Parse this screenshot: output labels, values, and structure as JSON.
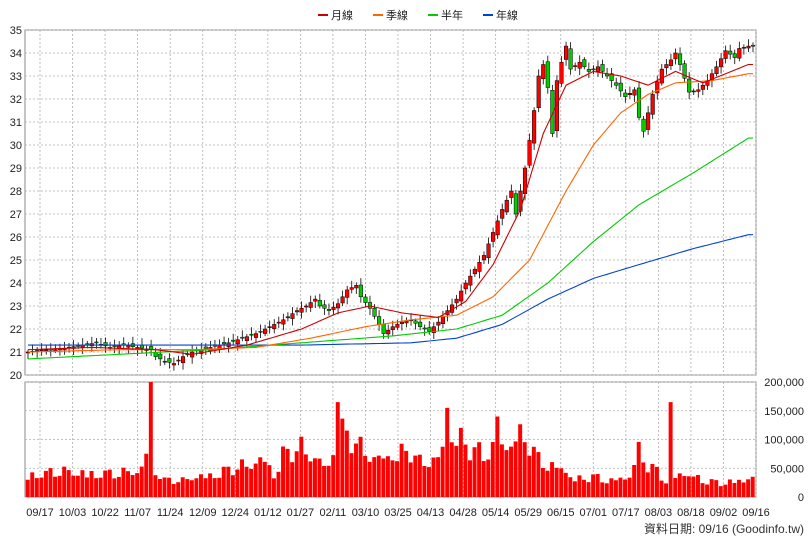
{
  "chart_data": {
    "type": "candlestick",
    "legend": [
      {
        "name": "月線",
        "color": "#cc0000"
      },
      {
        "name": "季線",
        "color": "#ff6600"
      },
      {
        "name": "半年",
        "color": "#00cc00"
      },
      {
        "name": "年線",
        "color": "#0044cc"
      }
    ],
    "price_axis": {
      "min": 20,
      "max": 35,
      "ticks": [
        20,
        21,
        22,
        23,
        24,
        25,
        26,
        27,
        28,
        29,
        30,
        31,
        32,
        33,
        34,
        35
      ]
    },
    "volume_axis": {
      "min": 0,
      "max": 200000,
      "ticks": [
        {
          "v": 0,
          "label": "0"
        },
        {
          "v": 50000,
          "label": "50,000"
        },
        {
          "v": 100000,
          "label": "100,000"
        },
        {
          "v": 150000,
          "label": "150,000"
        },
        {
          "v": 200000,
          "label": "200,000"
        }
      ]
    },
    "x_labels": [
      "09/17",
      "10/03",
      "10/22",
      "11/07",
      "11/24",
      "12/09",
      "12/24",
      "01/12",
      "01/27",
      "02/11",
      "03/10",
      "03/25",
      "04/13",
      "04/28",
      "05/14",
      "05/29",
      "06/15",
      "07/01",
      "07/17",
      "08/03",
      "08/18",
      "09/02",
      "09/16"
    ],
    "price_anchors": [
      [
        0,
        21.0
      ],
      [
        3,
        21.1
      ],
      [
        6,
        21.1
      ],
      [
        9,
        21.2
      ],
      [
        12,
        21.3
      ],
      [
        15,
        21.4
      ],
      [
        18,
        21.2
      ],
      [
        21,
        21.3
      ],
      [
        24,
        21.2
      ],
      [
        27,
        21.1
      ],
      [
        28,
        20.8
      ],
      [
        30,
        20.6
      ],
      [
        32,
        20.5
      ],
      [
        34,
        20.8
      ],
      [
        36,
        21.0
      ],
      [
        40,
        21.2
      ],
      [
        44,
        21.4
      ],
      [
        47,
        21.6
      ],
      [
        50,
        21.8
      ],
      [
        53,
        22.1
      ],
      [
        56,
        22.4
      ],
      [
        59,
        22.8
      ],
      [
        61,
        23.0
      ],
      [
        63,
        23.3
      ],
      [
        64,
        23.0
      ],
      [
        66,
        22.8
      ],
      [
        68,
        23.1
      ],
      [
        70,
        23.7
      ],
      [
        72,
        23.9
      ],
      [
        73,
        23.4
      ],
      [
        75,
        22.9
      ],
      [
        77,
        22.2
      ],
      [
        78,
        21.8
      ],
      [
        80,
        22.1
      ],
      [
        82,
        22.3
      ],
      [
        84,
        22.4
      ],
      [
        86,
        22.1
      ],
      [
        88,
        21.9
      ],
      [
        90,
        22.3
      ],
      [
        92,
        22.8
      ],
      [
        94,
        23.3
      ],
      [
        96,
        24.0
      ],
      [
        98,
        24.6
      ],
      [
        100,
        25.2
      ],
      [
        102,
        26.2
      ],
      [
        104,
        27.2
      ],
      [
        106,
        28.0
      ],
      [
        107,
        27.0
      ],
      [
        109,
        29.0
      ],
      [
        110,
        30.2
      ],
      [
        111,
        31.5
      ],
      [
        112,
        33.0
      ],
      [
        113,
        33.5
      ],
      [
        114,
        32.5
      ],
      [
        115,
        30.5
      ],
      [
        116,
        32.8
      ],
      [
        117,
        33.6
      ],
      [
        118,
        34.3
      ],
      [
        119,
        33.3
      ],
      [
        121,
        33.6
      ],
      [
        123,
        33.2
      ],
      [
        125,
        33.4
      ],
      [
        127,
        33.0
      ],
      [
        129,
        32.6
      ],
      [
        131,
        32.1
      ],
      [
        133,
        32.4
      ],
      [
        134,
        31.2
      ],
      [
        135,
        30.6
      ],
      [
        137,
        32.2
      ],
      [
        139,
        33.3
      ],
      [
        141,
        33.7
      ],
      [
        142,
        34.0
      ],
      [
        143,
        33.5
      ],
      [
        145,
        32.3
      ],
      [
        147,
        32.4
      ],
      [
        149,
        32.8
      ],
      [
        151,
        33.4
      ],
      [
        153,
        34.1
      ],
      [
        155,
        33.8
      ],
      [
        156,
        34.2
      ],
      [
        158,
        34.3
      ]
    ],
    "volume_anchors": [
      [
        0,
        40000
      ],
      [
        10,
        45000
      ],
      [
        20,
        40000
      ],
      [
        25,
        50000
      ],
      [
        27,
        135000
      ],
      [
        28,
        50000
      ],
      [
        30,
        30000
      ],
      [
        34,
        28000
      ],
      [
        36,
        35000
      ],
      [
        40,
        40000
      ],
      [
        48,
        55000
      ],
      [
        52,
        70000
      ],
      [
        54,
        40000
      ],
      [
        56,
        75000
      ],
      [
        60,
        85000
      ],
      [
        63,
        70000
      ],
      [
        66,
        55000
      ],
      [
        68,
        120000
      ],
      [
        70,
        110000
      ],
      [
        73,
        85000
      ],
      [
        76,
        70000
      ],
      [
        80,
        75000
      ],
      [
        84,
        80000
      ],
      [
        86,
        60000
      ],
      [
        88,
        65000
      ],
      [
        90,
        70000
      ],
      [
        92,
        115000
      ],
      [
        95,
        100000
      ],
      [
        97,
        85000
      ],
      [
        100,
        75000
      ],
      [
        103,
        100000
      ],
      [
        105,
        90000
      ],
      [
        107,
        110000
      ],
      [
        110,
        95000
      ],
      [
        112,
        65000
      ],
      [
        114,
        60000
      ],
      [
        118,
        48000
      ],
      [
        120,
        30000
      ],
      [
        124,
        35000
      ],
      [
        128,
        30000
      ],
      [
        132,
        38000
      ],
      [
        134,
        80000
      ],
      [
        136,
        55000
      ],
      [
        138,
        45000
      ],
      [
        140,
        30000
      ],
      [
        144,
        45000
      ],
      [
        148,
        28000
      ],
      [
        152,
        25000
      ],
      [
        156,
        30000
      ],
      [
        158,
        35000
      ]
    ],
    "volume_spikes": [
      [
        27,
        200000
      ],
      [
        68,
        165000
      ],
      [
        92,
        155000
      ],
      [
        103,
        140000
      ],
      [
        141,
        165000
      ]
    ],
    "ma_monthly": [
      [
        0,
        21.1
      ],
      [
        14,
        21.2
      ],
      [
        28,
        21.1
      ],
      [
        36,
        20.9
      ],
      [
        48,
        21.3
      ],
      [
        60,
        22.0
      ],
      [
        68,
        22.7
      ],
      [
        75,
        23.0
      ],
      [
        82,
        22.7
      ],
      [
        90,
        22.5
      ],
      [
        96,
        23.2
      ],
      [
        102,
        24.8
      ],
      [
        108,
        27.2
      ],
      [
        113,
        30.5
      ],
      [
        118,
        32.6
      ],
      [
        124,
        33.2
      ],
      [
        130,
        33.0
      ],
      [
        136,
        32.6
      ],
      [
        142,
        33.2
      ],
      [
        148,
        32.7
      ],
      [
        153,
        33.1
      ],
      [
        158,
        33.5
      ]
    ],
    "ma_quarterly": [
      [
        0,
        21.0
      ],
      [
        20,
        21.1
      ],
      [
        36,
        21.1
      ],
      [
        50,
        21.2
      ],
      [
        62,
        21.6
      ],
      [
        74,
        22.1
      ],
      [
        84,
        22.4
      ],
      [
        94,
        22.6
      ],
      [
        102,
        23.4
      ],
      [
        110,
        25.0
      ],
      [
        118,
        28.0
      ],
      [
        124,
        30.0
      ],
      [
        130,
        31.4
      ],
      [
        136,
        32.2
      ],
      [
        142,
        32.7
      ],
      [
        150,
        32.8
      ],
      [
        158,
        33.1
      ]
    ],
    "ma_halfyear": [
      [
        0,
        20.7
      ],
      [
        20,
        20.9
      ],
      [
        40,
        21.1
      ],
      [
        60,
        21.4
      ],
      [
        80,
        21.7
      ],
      [
        94,
        22.0
      ],
      [
        104,
        22.6
      ],
      [
        114,
        24.0
      ],
      [
        124,
        25.8
      ],
      [
        134,
        27.4
      ],
      [
        146,
        28.8
      ],
      [
        158,
        30.3
      ]
    ],
    "ma_yearly": [
      [
        0,
        21.3
      ],
      [
        30,
        21.3
      ],
      [
        60,
        21.3
      ],
      [
        84,
        21.4
      ],
      [
        94,
        21.6
      ],
      [
        104,
        22.2
      ],
      [
        114,
        23.3
      ],
      [
        124,
        24.2
      ],
      [
        134,
        24.8
      ],
      [
        146,
        25.5
      ],
      [
        158,
        26.1
      ]
    ],
    "date_note": "資料日期: 09/16  (Goodinfo.tw)"
  }
}
